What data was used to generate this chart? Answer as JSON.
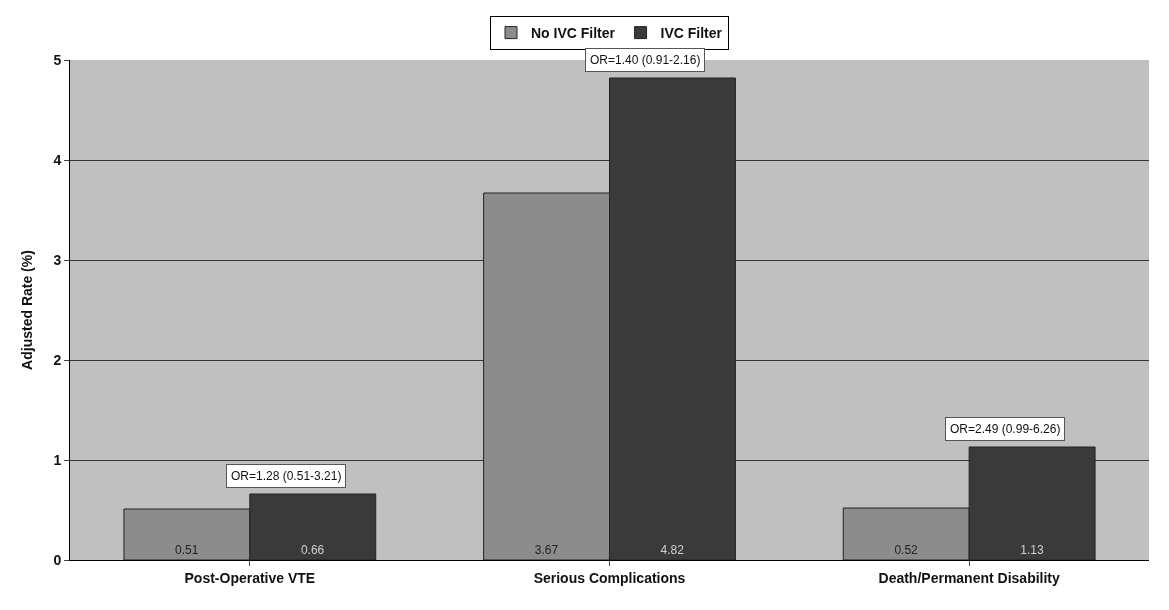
{
  "chart_data": {
    "type": "bar",
    "ylabel": "Adjusted Rate (%)",
    "categories": [
      "Post-Operative VTE",
      "Serious Complications",
      "Death/Permanent Disability"
    ],
    "series": [
      {
        "name": "No IVC Filter",
        "color": "#8c8c8c",
        "values": [
          0.51,
          3.67,
          0.52
        ]
      },
      {
        "name": "IVC Filter",
        "color": "#3a3a3a",
        "values": [
          0.66,
          4.82,
          1.13
        ]
      }
    ],
    "ylim": [
      0,
      5
    ],
    "yticks": [
      0,
      1,
      2,
      3,
      4,
      5
    ],
    "grid": "y",
    "legend": "top",
    "data_labels": true,
    "annotations": [
      {
        "text": "OR=1.28 (0.51-3.21)",
        "x": "Post-Operative VTE",
        "y": 0.66
      },
      {
        "text": "OR=1.40 (0.91-2.16)",
        "x": "Serious Complications",
        "y": 4.82
      },
      {
        "text": "OR=2.49 (0.99-6.26)",
        "x": "Death/Permanent Disability",
        "y": 1.13
      }
    ]
  }
}
